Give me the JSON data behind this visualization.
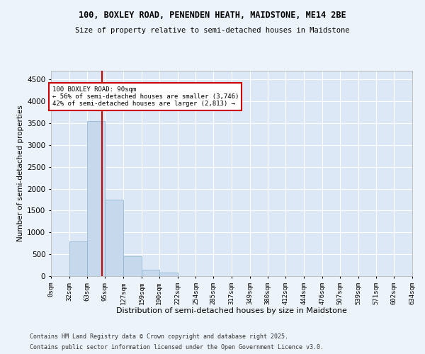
{
  "title1": "100, BOXLEY ROAD, PENENDEN HEATH, MAIDSTONE, ME14 2BE",
  "title2": "Size of property relative to semi-detached houses in Maidstone",
  "xlabel": "Distribution of semi-detached houses by size in Maidstone",
  "ylabel": "Number of semi-detached properties",
  "footer1": "Contains HM Land Registry data © Crown copyright and database right 2025.",
  "footer2": "Contains public sector information licensed under the Open Government Licence v3.0.",
  "bar_color": "#c5d8ec",
  "bar_edge_color": "#8ab0cc",
  "background_color": "#dce8f5",
  "grid_color": "#ffffff",
  "fig_bg_color": "#edf3fa",
  "vline_color": "#cc0000",
  "annotation_box_color": "#cc0000",
  "property_size": 90,
  "annotation_line1": "100 BOXLEY ROAD: 90sqm",
  "annotation_line2": "← 56% of semi-detached houses are smaller (3,746)",
  "annotation_line3": "42% of semi-detached houses are larger (2,813) →",
  "bin_edges": [
    0,
    32,
    63,
    95,
    127,
    159,
    190,
    222,
    254,
    285,
    317,
    349,
    380,
    412,
    444,
    476,
    507,
    539,
    571,
    602,
    634
  ],
  "bin_labels": [
    "0sqm",
    "32sqm",
    "63sqm",
    "95sqm",
    "127sqm",
    "159sqm",
    "190sqm",
    "222sqm",
    "254sqm",
    "285sqm",
    "317sqm",
    "349sqm",
    "380sqm",
    "412sqm",
    "444sqm",
    "476sqm",
    "507sqm",
    "539sqm",
    "571sqm",
    "602sqm",
    "634sqm"
  ],
  "bar_heights": [
    0,
    800,
    3550,
    1750,
    450,
    150,
    80,
    0,
    0,
    0,
    0,
    0,
    0,
    0,
    0,
    0,
    0,
    0,
    0,
    0
  ],
  "ylim": [
    0,
    4700
  ],
  "yticks": [
    0,
    500,
    1000,
    1500,
    2000,
    2500,
    3000,
    3500,
    4000,
    4500
  ]
}
